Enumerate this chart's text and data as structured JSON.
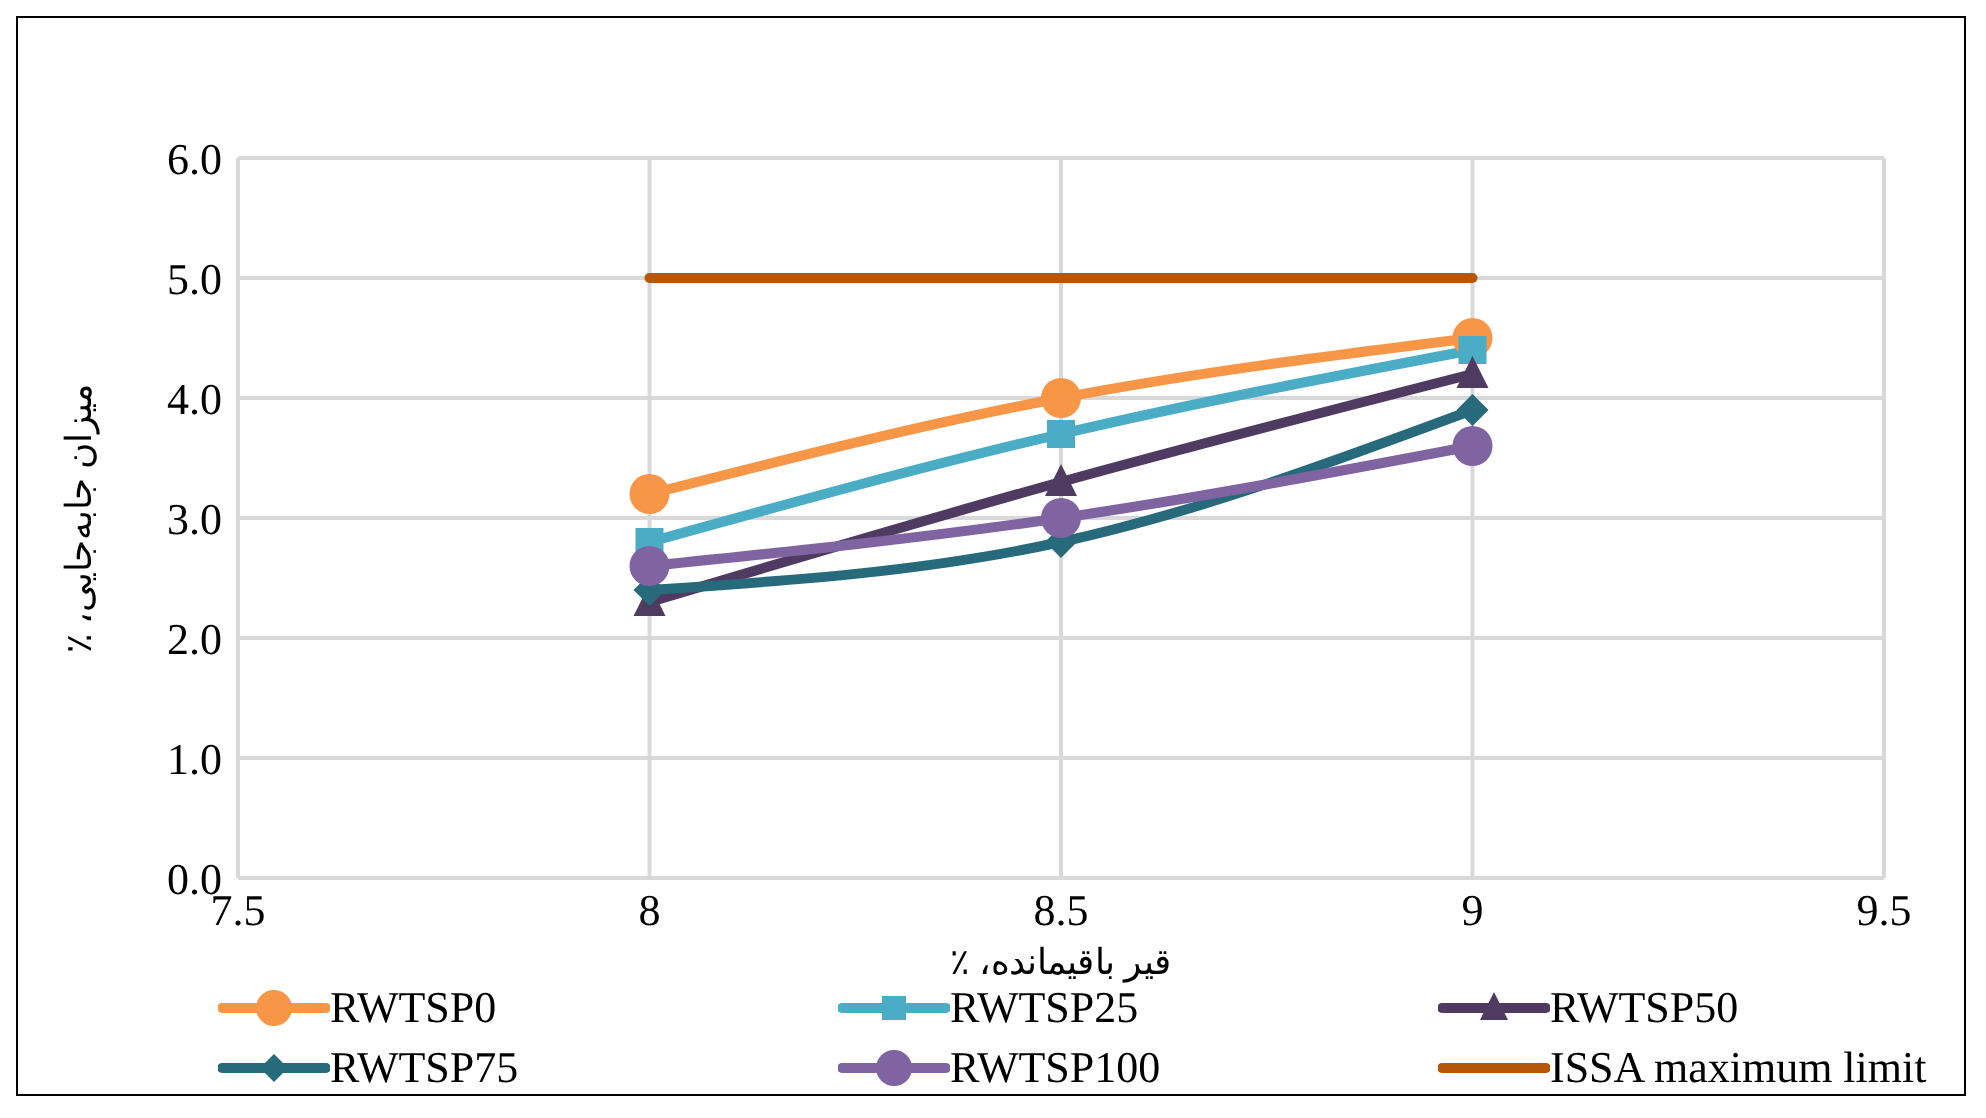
{
  "chart_data": {
    "type": "line",
    "xlabel": "قیر باقیمانده، ٪",
    "ylabel": "میزان جابه‌جایی، ٪",
    "x": [
      8,
      8.5,
      9
    ],
    "series": [
      {
        "name": "RWTSP0",
        "color": "#f79646",
        "values": [
          3.2,
          4.0,
          4.5
        ],
        "marker": "circle"
      },
      {
        "name": "RWTSP25",
        "color": "#4bacc6",
        "values": [
          2.8,
          3.7,
          4.4
        ],
        "marker": "square"
      },
      {
        "name": "RWTSP50",
        "color": "#4f3b62",
        "values": [
          2.3,
          3.3,
          4.2
        ],
        "marker": "triangle"
      },
      {
        "name": "RWTSP75",
        "color": "#276a7c",
        "values": [
          2.4,
          2.8,
          3.9
        ],
        "marker": "diamond"
      },
      {
        "name": "RWTSP100",
        "color": "#8064a2",
        "values": [
          2.6,
          3.0,
          3.6
        ],
        "marker": "circle"
      },
      {
        "name": "ISSA maximum limit",
        "color": "#b65708",
        "values": [
          5.0,
          5.0,
          5.0
        ],
        "marker": "none"
      }
    ],
    "xlim": [
      7.5,
      9.5
    ],
    "xticks": [
      7.5,
      8,
      8.5,
      9,
      9.5
    ],
    "ylim": [
      0,
      6
    ],
    "yticks": [
      {
        "value": 0,
        "label": "0.0"
      },
      {
        "value": 1,
        "label": "1.0"
      },
      {
        "value": 2,
        "label": "2.0"
      },
      {
        "value": 3,
        "label": "3.0"
      },
      {
        "value": 4,
        "label": "4.0"
      },
      {
        "value": 5,
        "label": "5.0"
      },
      {
        "value": 6,
        "label": "6.0"
      }
    ],
    "grid": true,
    "legend": "bottom",
    "line_style": "solid"
  }
}
